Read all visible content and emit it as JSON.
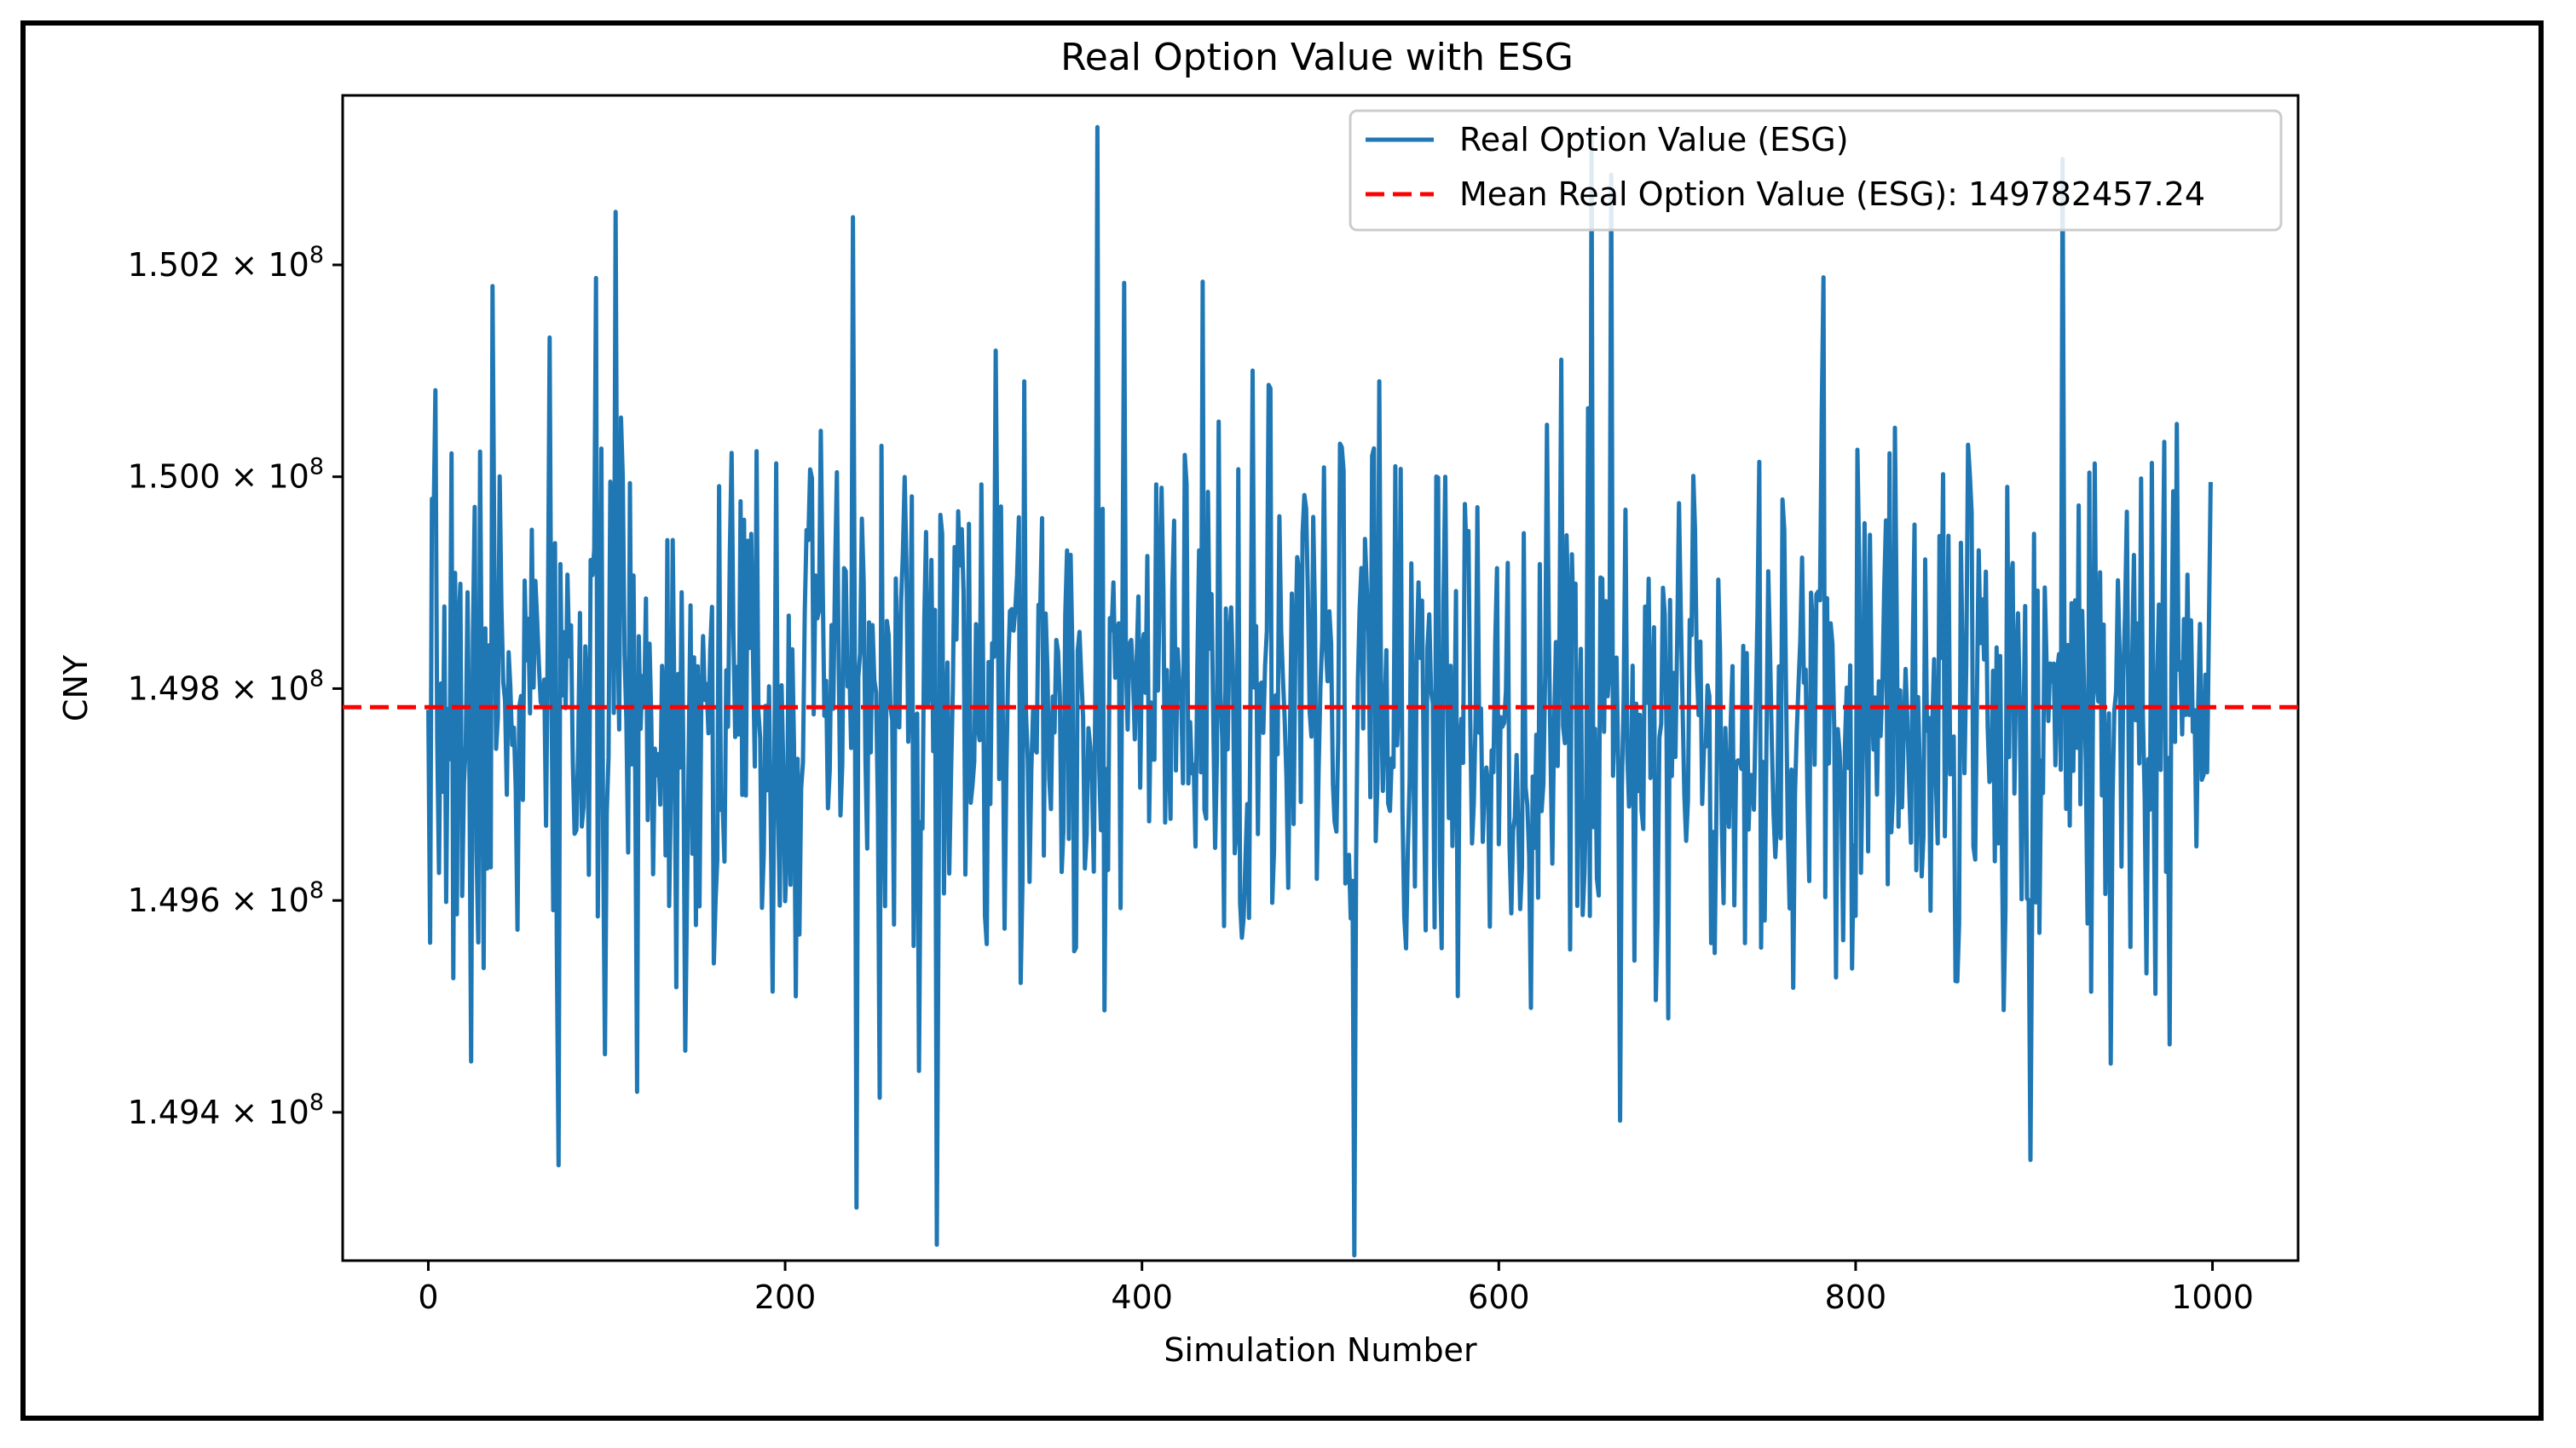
{
  "chart_data": {
    "type": "line",
    "title": "Real Option Value with ESG",
    "xlabel": "Simulation Number",
    "ylabel": "CNY",
    "xlim": [
      -48,
      1048
    ],
    "ylim": [
      149260000,
      150360000
    ],
    "x_ticks": [
      0,
      200,
      400,
      600,
      800,
      1000
    ],
    "x_tick_labels": [
      "0",
      "200",
      "400",
      "600",
      "800",
      "1000"
    ],
    "y_ticks": [
      149400000,
      149600000,
      149800000,
      150000000,
      150200000
    ],
    "y_tick_mantissas": [
      "1.494",
      "1.496",
      "1.498",
      "1.500",
      "1.502"
    ],
    "y_tick_multiplier": "× 10",
    "y_tick_exponent": "8",
    "legend_position": "top-right",
    "series": [
      {
        "name": "Real Option Value (ESG)",
        "legend_label": "Real Option Value (ESG)",
        "color": "#1f77b4",
        "style": "solid",
        "n_points": 1000,
        "seed": 7,
        "stats": {
          "mean": 149782457.24,
          "std": 130000,
          "min": 149270000,
          "max": 150330000
        },
        "anchors": [
          {
            "x": 0,
            "value": 149780000
          },
          {
            "x": 1,
            "value": 149560000
          },
          {
            "x": 24,
            "value": 149448000
          },
          {
            "x": 36,
            "value": 150180000
          },
          {
            "x": 73,
            "value": 149350000
          },
          {
            "x": 105,
            "value": 150250000
          },
          {
            "x": 238,
            "value": 150245000
          },
          {
            "x": 240,
            "value": 149310000
          },
          {
            "x": 285,
            "value": 149275000
          },
          {
            "x": 375,
            "value": 150330000
          },
          {
            "x": 519,
            "value": 149265000
          },
          {
            "x": 652,
            "value": 150320000
          },
          {
            "x": 663,
            "value": 150285000
          },
          {
            "x": 898,
            "value": 149355000
          },
          {
            "x": 916,
            "value": 150300000
          },
          {
            "x": 999,
            "value": 149995000
          }
        ]
      },
      {
        "name": "Mean Real Option Value (ESG)",
        "legend_label": "Mean Real Option Value (ESG): 149782457.24",
        "color": "#ff0000",
        "style": "dashed",
        "value": 149782457.24
      }
    ]
  }
}
